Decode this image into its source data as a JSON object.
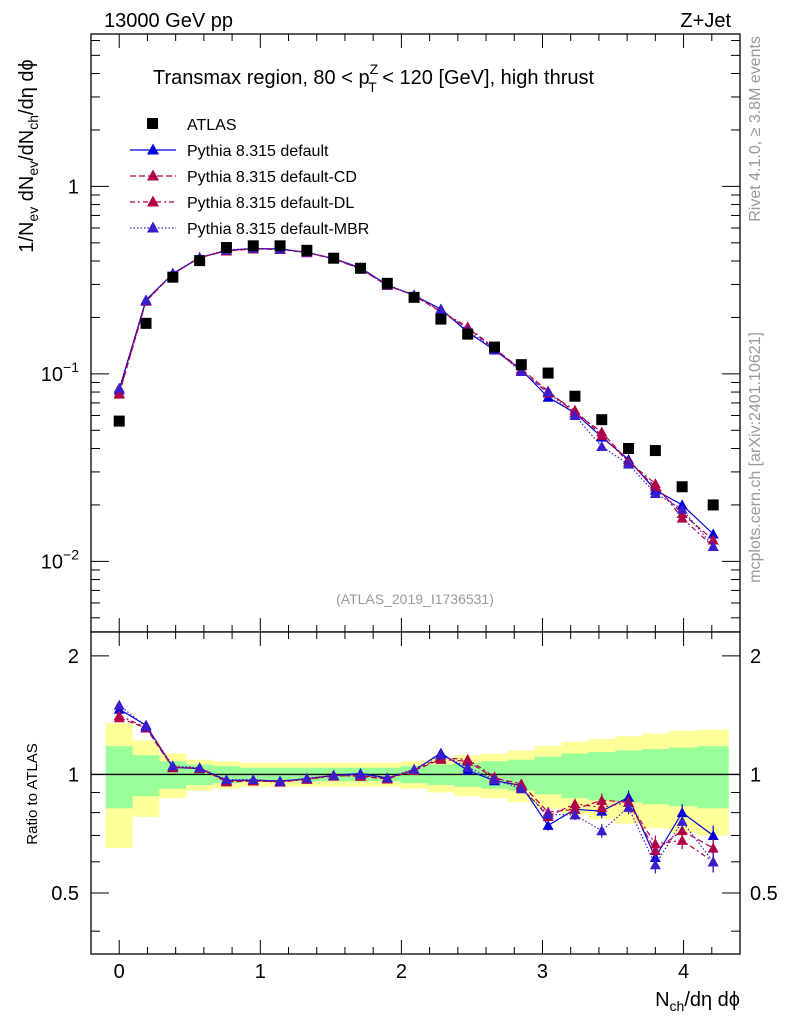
{
  "header": {
    "left": "13000 GeV pp",
    "right": "Z+Jet"
  },
  "side_labels": {
    "rivet": "Rivet 4.1.0, ≥ 3.8M events",
    "mcplots": "mcplots.cern.ch [arXiv:2401.10621]"
  },
  "chart_data": {
    "type": "scatter",
    "title": {
      "prefix": "Transmax region, 80 < p",
      "sup": "Z",
      "sub": "T",
      "suffix": " < 120 [GeV], high thrust"
    },
    "watermark": "(ATLAS_2019_I1736531)",
    "xlabel": {
      "main": "N",
      "sub": "ch",
      "rest": "/dη dϕ"
    },
    "ylabel": {
      "a": "1/N",
      "a_sub": "ev",
      "b": " dN",
      "b_sub": "ev",
      "c": "/dN",
      "c_sub": "ch",
      "d": "/dη dϕ"
    },
    "ratio_ylabel": "Ratio to ATLAS",
    "xlim": [
      -0.2,
      4.4
    ],
    "ylim": [
      0.0042,
      6.5
    ],
    "ratio_ylim": [
      0.35,
      2.3
    ],
    "x_ticks": [
      {
        "value": 0,
        "label": "0"
      },
      {
        "value": 1,
        "label": "1"
      },
      {
        "value": 2,
        "label": "2"
      },
      {
        "value": 3,
        "label": "3"
      },
      {
        "value": 4,
        "label": "4"
      }
    ],
    "y_ticks": [
      {
        "value": 1,
        "label": "1",
        "exp": ""
      },
      {
        "value": 0.1,
        "label": "10",
        "exp": "−1"
      },
      {
        "value": 0.01,
        "label": "10",
        "exp": "−2"
      }
    ],
    "ratio_ticks": [
      {
        "value": 2,
        "label": "2"
      },
      {
        "value": 1,
        "label": "1"
      },
      {
        "value": 0.5,
        "label": "0.5"
      }
    ],
    "legend_position": "top-left",
    "x": [
      0,
      0.19,
      0.38,
      0.57,
      0.76,
      0.95,
      1.14,
      1.33,
      1.52,
      1.71,
      1.9,
      2.09,
      2.28,
      2.47,
      2.66,
      2.85,
      3.04,
      3.23,
      3.42,
      3.61,
      3.8,
      3.99,
      4.21
    ],
    "data": {
      "name": "ATLAS",
      "values": [
        0.056,
        0.186,
        0.328,
        0.402,
        0.472,
        0.482,
        0.482,
        0.456,
        0.414,
        0.366,
        0.304,
        0.256,
        0.196,
        0.163,
        0.139,
        0.112,
        0.101,
        0.076,
        0.057,
        0.04,
        0.039,
        0.025,
        0.02
      ],
      "band_inner": [
        0.18,
        0.12,
        0.08,
        0.06,
        0.05,
        0.04,
        0.04,
        0.04,
        0.04,
        0.04,
        0.04,
        0.05,
        0.06,
        0.07,
        0.08,
        0.09,
        0.11,
        0.13,
        0.14,
        0.15,
        0.16,
        0.17,
        0.18
      ],
      "band_outer": [
        0.35,
        0.22,
        0.13,
        0.09,
        0.08,
        0.07,
        0.07,
        0.07,
        0.07,
        0.07,
        0.07,
        0.08,
        0.1,
        0.12,
        0.13,
        0.15,
        0.18,
        0.21,
        0.23,
        0.25,
        0.27,
        0.29,
        0.3
      ]
    },
    "series": [
      {
        "name": "Pythia 8.315 default",
        "color": "#0000dd",
        "dash": "",
        "values": [
          0.082,
          0.248,
          0.342,
          0.416,
          0.456,
          0.466,
          0.464,
          0.444,
          0.412,
          0.368,
          0.298,
          0.262,
          0.222,
          0.167,
          0.134,
          0.105,
          0.075,
          0.062,
          0.046,
          0.035,
          0.024,
          0.02,
          0.014
        ],
        "ratio_err": [
          0.02,
          0.02,
          0.015,
          0.015,
          0.015,
          0.015,
          0.015,
          0.015,
          0.015,
          0.015,
          0.015,
          0.02,
          0.02,
          0.02,
          0.02,
          0.025,
          0.03,
          0.03,
          0.04,
          0.04,
          0.05,
          0.05,
          0.06
        ]
      },
      {
        "name": "Pythia 8.315 default-CD",
        "color": "#b0004a",
        "dash": "6,3",
        "values": [
          0.078,
          0.244,
          0.341,
          0.418,
          0.452,
          0.464,
          0.462,
          0.444,
          0.412,
          0.362,
          0.296,
          0.262,
          0.214,
          0.176,
          0.136,
          0.106,
          0.081,
          0.062,
          0.049,
          0.034,
          0.025,
          0.018,
          0.013
        ],
        "ratio_err": [
          0.02,
          0.02,
          0.015,
          0.015,
          0.015,
          0.015,
          0.015,
          0.015,
          0.015,
          0.015,
          0.015,
          0.02,
          0.02,
          0.02,
          0.02,
          0.025,
          0.03,
          0.03,
          0.04,
          0.04,
          0.05,
          0.05,
          0.06
        ]
      },
      {
        "name": "Pythia 8.315 default-DL",
        "color": "#b0004a",
        "dash": "5,3,2,3",
        "values": [
          0.079,
          0.245,
          0.343,
          0.416,
          0.454,
          0.465,
          0.461,
          0.443,
          0.41,
          0.364,
          0.297,
          0.263,
          0.216,
          0.178,
          0.137,
          0.104,
          0.079,
          0.064,
          0.047,
          0.034,
          0.026,
          0.017,
          0.012
        ],
        "ratio_err": [
          0.02,
          0.02,
          0.015,
          0.015,
          0.015,
          0.015,
          0.015,
          0.015,
          0.015,
          0.015,
          0.015,
          0.02,
          0.02,
          0.02,
          0.02,
          0.025,
          0.03,
          0.03,
          0.04,
          0.04,
          0.05,
          0.05,
          0.06
        ]
      },
      {
        "name": "Pythia 8.315 default-MBR",
        "color": "#3a1ecc",
        "dash": "1.5,2",
        "values": [
          0.084,
          0.246,
          0.345,
          0.418,
          0.458,
          0.468,
          0.463,
          0.446,
          0.412,
          0.366,
          0.298,
          0.264,
          0.22,
          0.17,
          0.135,
          0.103,
          0.08,
          0.06,
          0.041,
          0.033,
          0.023,
          0.019,
          0.012
        ],
        "ratio_err": [
          0.02,
          0.02,
          0.015,
          0.015,
          0.015,
          0.015,
          0.015,
          0.015,
          0.015,
          0.015,
          0.015,
          0.02,
          0.02,
          0.02,
          0.02,
          0.025,
          0.03,
          0.03,
          0.04,
          0.04,
          0.05,
          0.05,
          0.06
        ]
      }
    ]
  }
}
